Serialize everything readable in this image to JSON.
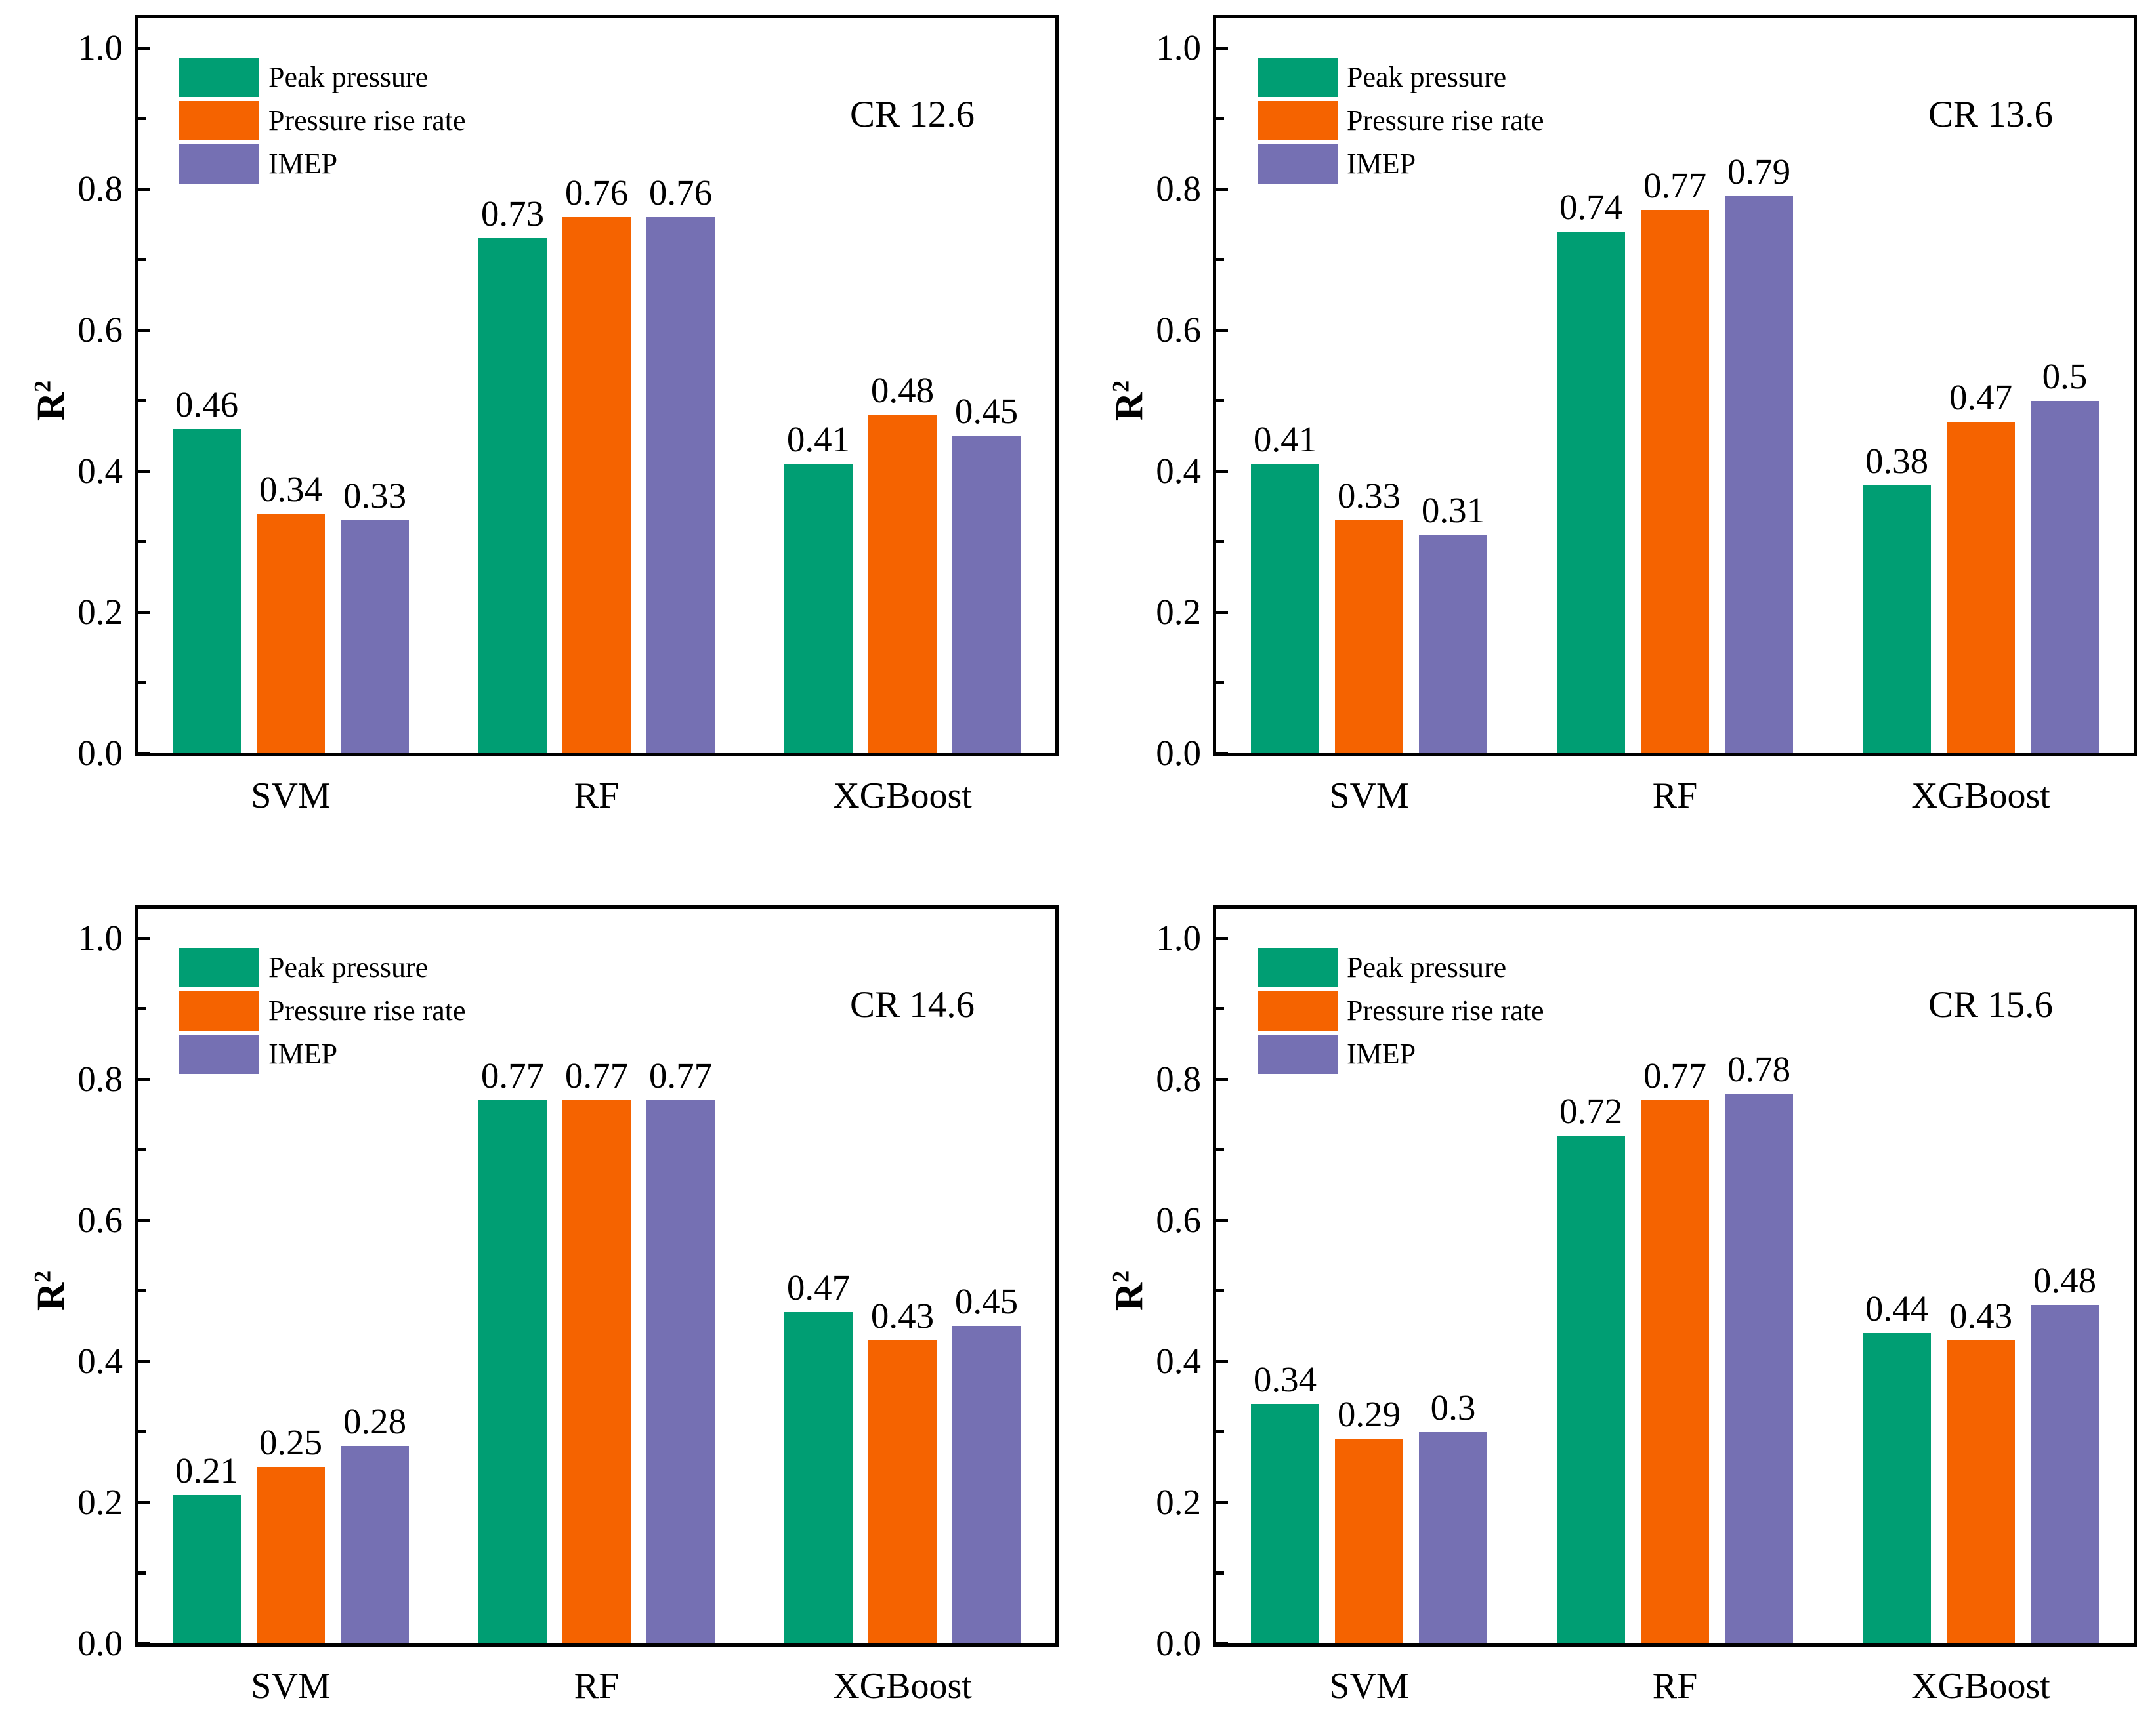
{
  "axis": {
    "ylabel_base": "R",
    "ylabel_sup": "2"
  },
  "chart_data": [
    {
      "type": "bar",
      "title": "CR 12.6",
      "ylabel": "R2",
      "xlabel": "",
      "ylim": [
        0,
        1.04
      ],
      "grid": false,
      "legend_position": "top-left",
      "categories": [
        "SVM",
        "RF",
        "XGBoost"
      ],
      "yticks": [
        1.0,
        0.8,
        0.6,
        0.4,
        0.2,
        0.0
      ],
      "ytick_labels": [
        "1.0",
        "0.8",
        "0.6",
        "0.4",
        "0.2",
        "0.0"
      ],
      "minor_yticks": [
        0.9,
        0.7,
        0.5,
        0.3,
        0.1
      ],
      "series": [
        {
          "name": "Peak pressure",
          "color": "#009E73",
          "values": [
            0.46,
            0.73,
            0.41
          ],
          "labels": [
            "0.46",
            "0.73",
            "0.41"
          ]
        },
        {
          "name": "Pressure rise rate",
          "color": "#F56300",
          "values": [
            0.34,
            0.76,
            0.48
          ],
          "labels": [
            "0.34",
            "0.76",
            "0.48"
          ]
        },
        {
          "name": "IMEP",
          "color": "#7570B3",
          "values": [
            0.33,
            0.76,
            0.45
          ],
          "labels": [
            "0.33",
            "0.76",
            "0.45"
          ]
        }
      ]
    },
    {
      "type": "bar",
      "title": "CR 13.6",
      "ylabel": "R2",
      "xlabel": "",
      "ylim": [
        0,
        1.04
      ],
      "grid": false,
      "legend_position": "top-left",
      "categories": [
        "SVM",
        "RF",
        "XGBoost"
      ],
      "yticks": [
        1.0,
        0.8,
        0.6,
        0.4,
        0.2,
        0.0
      ],
      "ytick_labels": [
        "1.0",
        "0.8",
        "0.6",
        "0.4",
        "0.2",
        "0.0"
      ],
      "minor_yticks": [
        0.9,
        0.7,
        0.5,
        0.3,
        0.1
      ],
      "series": [
        {
          "name": "Peak pressure",
          "color": "#009E73",
          "values": [
            0.41,
            0.74,
            0.38
          ],
          "labels": [
            "0.41",
            "0.74",
            "0.38"
          ]
        },
        {
          "name": "Pressure rise rate",
          "color": "#F56300",
          "values": [
            0.33,
            0.77,
            0.47
          ],
          "labels": [
            "0.33",
            "0.77",
            "0.47"
          ]
        },
        {
          "name": "IMEP",
          "color": "#7570B3",
          "values": [
            0.31,
            0.79,
            0.5
          ],
          "labels": [
            "0.31",
            "0.79",
            "0.5"
          ]
        }
      ]
    },
    {
      "type": "bar",
      "title": "CR 14.6",
      "ylabel": "R2",
      "xlabel": "",
      "ylim": [
        0,
        1.04
      ],
      "grid": false,
      "legend_position": "top-left",
      "categories": [
        "SVM",
        "RF",
        "XGBoost"
      ],
      "yticks": [
        1.0,
        0.8,
        0.6,
        0.4,
        0.2,
        0.0
      ],
      "ytick_labels": [
        "1.0",
        "0.8",
        "0.6",
        "0.4",
        "0.2",
        "0.0"
      ],
      "minor_yticks": [
        0.9,
        0.7,
        0.5,
        0.3,
        0.1
      ],
      "series": [
        {
          "name": "Peak pressure",
          "color": "#009E73",
          "values": [
            0.21,
            0.77,
            0.47
          ],
          "labels": [
            "0.21",
            "0.77",
            "0.47"
          ]
        },
        {
          "name": "Pressure rise rate",
          "color": "#F56300",
          "values": [
            0.25,
            0.77,
            0.43
          ],
          "labels": [
            "0.25",
            "0.77",
            "0.43"
          ]
        },
        {
          "name": "IMEP",
          "color": "#7570B3",
          "values": [
            0.28,
            0.77,
            0.45
          ],
          "labels": [
            "0.28",
            "0.77",
            "0.45"
          ]
        }
      ]
    },
    {
      "type": "bar",
      "title": "CR 15.6",
      "ylabel": "R2",
      "xlabel": "",
      "ylim": [
        0,
        1.04
      ],
      "grid": false,
      "legend_position": "top-left",
      "categories": [
        "SVM",
        "RF",
        "XGBoost"
      ],
      "yticks": [
        1.0,
        0.8,
        0.6,
        0.4,
        0.2,
        0.0
      ],
      "ytick_labels": [
        "1.0",
        "0.8",
        "0.6",
        "0.4",
        "0.2",
        "0.0"
      ],
      "minor_yticks": [
        0.9,
        0.7,
        0.5,
        0.3,
        0.1
      ],
      "series": [
        {
          "name": "Peak pressure",
          "color": "#009E73",
          "values": [
            0.34,
            0.72,
            0.44
          ],
          "labels": [
            "0.34",
            "0.72",
            "0.44"
          ]
        },
        {
          "name": "Pressure rise rate",
          "color": "#F56300",
          "values": [
            0.29,
            0.77,
            0.43
          ],
          "labels": [
            "0.29",
            "0.77",
            "0.43"
          ]
        },
        {
          "name": "IMEP",
          "color": "#7570B3",
          "values": [
            0.3,
            0.78,
            0.48
          ],
          "labels": [
            "0.3",
            "0.78",
            "0.48"
          ]
        }
      ]
    }
  ]
}
